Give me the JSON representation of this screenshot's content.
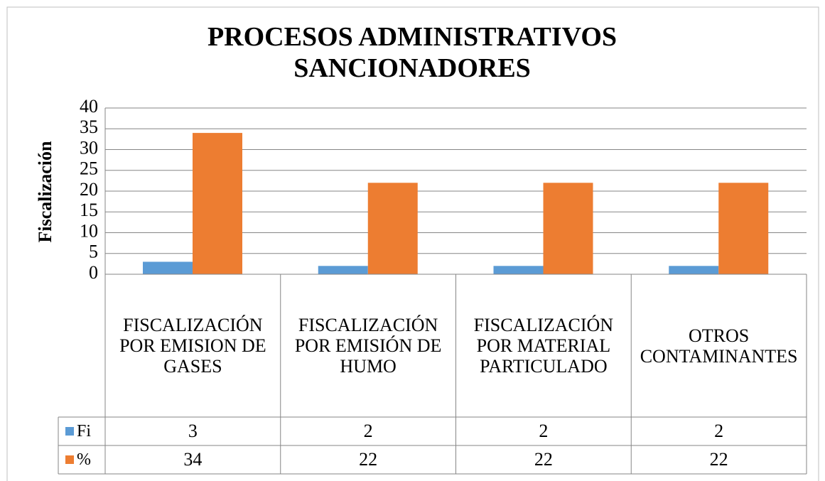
{
  "chart_data": {
    "type": "bar",
    "title": "PROCESOS ADMINISTRATIVOS SANCIONADORES",
    "y_label": "Fiscalización",
    "categories": [
      "FISCALIZACIÓN POR EMISION DE GASES",
      "FISCALIZACIÓN POR EMISIÓN DE HUMO",
      "FISCALIZACIÓN POR MATERIAL PARTICULADO",
      "OTROS CONTAMINANTES"
    ],
    "series": [
      {
        "name": "Fi",
        "color": "#5b9bd5",
        "values": [
          3,
          2,
          2,
          2
        ]
      },
      {
        "name": "%",
        "color": "#ed7d31",
        "values": [
          34,
          22,
          22,
          22
        ]
      }
    ],
    "ylim": [
      0,
      40
    ],
    "yticks": [
      0,
      5,
      10,
      15,
      20,
      25,
      30,
      35,
      40
    ],
    "grid": true,
    "legend": "table"
  }
}
